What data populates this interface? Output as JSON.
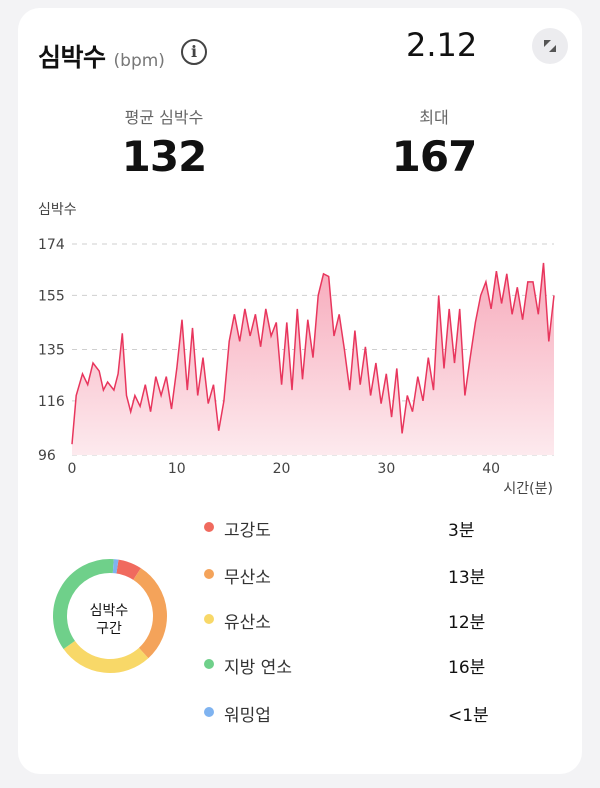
{
  "header": {
    "title": "심박수",
    "unit": "(bpm)",
    "info_glyph": "i",
    "date": "2.12"
  },
  "stats": {
    "avg_label": "평균 심박수",
    "avg_value": "132",
    "max_label": "최대",
    "max_value": "167"
  },
  "chart_data": {
    "type": "area",
    "ylabel": "심박수",
    "xlabel": "시간(분)",
    "yticks": [
      96,
      116,
      135,
      155,
      174
    ],
    "xticks": [
      0,
      10,
      20,
      30,
      40
    ],
    "ylim": [
      96,
      174
    ],
    "xlim": [
      0,
      46
    ],
    "grid": "dashed-horizontal",
    "color": "#e8365d",
    "x": [
      0,
      0.4,
      1,
      1.5,
      2,
      2.6,
      3,
      3.4,
      4,
      4.4,
      4.8,
      5.2,
      5.6,
      6,
      6.5,
      7,
      7.5,
      8,
      8.5,
      9,
      9.5,
      10,
      10.5,
      11,
      11.5,
      12,
      12.5,
      13,
      13.5,
      14,
      14.5,
      15,
      15.5,
      16,
      16.5,
      17,
      17.5,
      18,
      18.5,
      19,
      19.5,
      20,
      20.5,
      21,
      21.5,
      22,
      22.5,
      23,
      23.5,
      24,
      24.5,
      25,
      25.5,
      26,
      26.5,
      27,
      27.5,
      28,
      28.5,
      29,
      29.5,
      30,
      30.5,
      31,
      31.5,
      32,
      32.5,
      33,
      33.5,
      34,
      34.5,
      35,
      35.5,
      36,
      36.5,
      37,
      37.5,
      38,
      38.5,
      39,
      39.5,
      40,
      40.5,
      41,
      41.5,
      42,
      42.5,
      43,
      43.5,
      44,
      44.5,
      45,
      45.5,
      46
    ],
    "values": [
      100,
      118,
      126,
      122,
      130,
      127,
      120,
      123,
      120,
      126,
      141,
      118,
      112,
      118,
      114,
      122,
      112,
      125,
      118,
      125,
      113,
      128,
      146,
      120,
      143,
      118,
      132,
      115,
      122,
      105,
      116,
      138,
      148,
      138,
      150,
      140,
      148,
      136,
      150,
      140,
      145,
      122,
      145,
      120,
      150,
      124,
      146,
      132,
      155,
      163,
      162,
      140,
      148,
      135,
      120,
      142,
      122,
      136,
      118,
      130,
      115,
      126,
      110,
      128,
      104,
      118,
      112,
      125,
      116,
      132,
      120,
      155,
      128,
      150,
      130,
      150,
      118,
      132,
      145,
      155,
      160,
      150,
      164,
      152,
      163,
      148,
      158,
      146,
      160,
      160,
      148,
      167,
      138,
      155
    ],
    "fill_top": "#f7aabb",
    "fill_bottom": "#fdeaee"
  },
  "zones": {
    "center_line1": "심박수",
    "center_line2": "구간",
    "items": [
      {
        "name": "고강도",
        "value": "3분",
        "color": "#f06a5e",
        "minutes": 3
      },
      {
        "name": "무산소",
        "value": "13분",
        "color": "#f4a35a",
        "minutes": 13
      },
      {
        "name": "유산소",
        "value": "12분",
        "color": "#f8d868",
        "minutes": 12
      },
      {
        "name": "지방 연소",
        "value": "16분",
        "color": "#6fd08a",
        "minutes": 16
      },
      {
        "name": "워밍업",
        "value": "<1분",
        "color": "#7fb3f0",
        "minutes": 0.6
      }
    ]
  }
}
